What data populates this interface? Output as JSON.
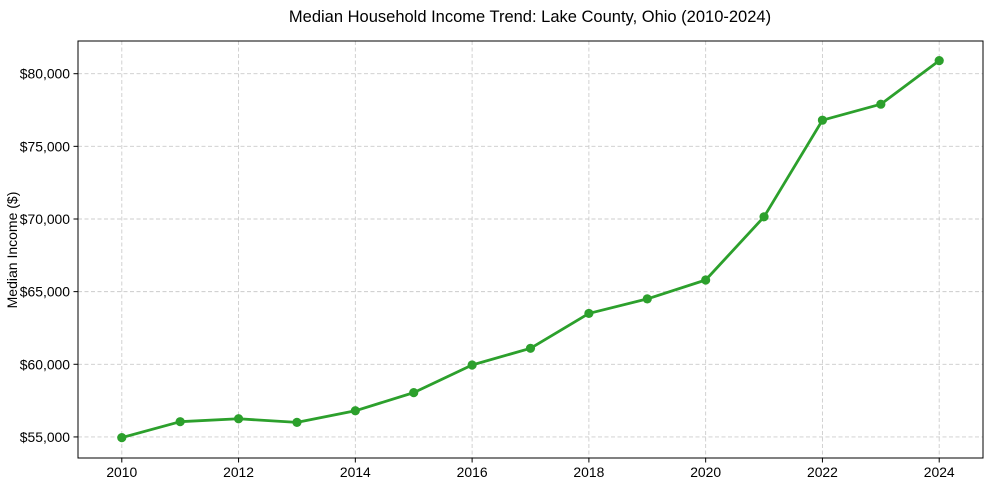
{
  "figure": {
    "background": "#ffffff"
  },
  "chart_data": {
    "type": "line",
    "title": "Median Household Income Trend: Lake County, Ohio (2010-2024)",
    "xlabel": "",
    "ylabel": "Median Income ($)",
    "series": [
      {
        "name": "median-household-income",
        "x": [
          2010,
          2011,
          2012,
          2013,
          2014,
          2015,
          2016,
          2017,
          2018,
          2019,
          2020,
          2021,
          2022,
          2023,
          2024
        ],
        "values": [
          54950,
          56050,
          56250,
          56000,
          56800,
          58050,
          59950,
          61100,
          63500,
          64500,
          65800,
          70150,
          76800,
          77900,
          80900
        ],
        "color": "#2ca02c",
        "marker": "circle",
        "line_width": 2.8,
        "marker_radius": 4.6
      }
    ],
    "xlim": [
      2009.25,
      2024.75
    ],
    "ylim": [
      53550,
      82250
    ],
    "x_ticks": [
      2010,
      2012,
      2014,
      2016,
      2018,
      2020,
      2022,
      2024
    ],
    "x_tick_labels": [
      "2010",
      "2012",
      "2014",
      "2016",
      "2018",
      "2020",
      "2022",
      "2024"
    ],
    "y_ticks": [
      55000,
      60000,
      65000,
      70000,
      75000,
      80000
    ],
    "y_tick_labels": [
      "$55,000",
      "$60,000",
      "$65,000",
      "$70,000",
      "$75,000",
      "$80,000"
    ],
    "grid": true,
    "grid_style": "dashed",
    "grid_color": "#cccccc",
    "axis_color": "#000000",
    "text_color": "#000000",
    "legend": "none"
  }
}
